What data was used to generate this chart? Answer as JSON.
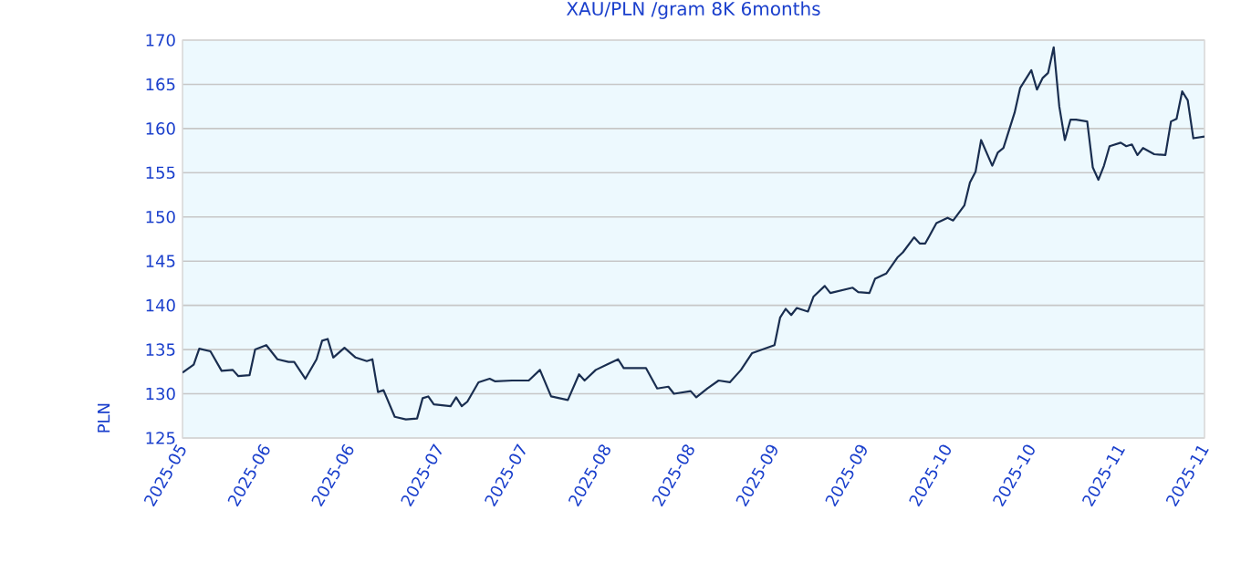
{
  "chart_data": {
    "type": "line",
    "title": "XAU/PLN /gram 8K 6months",
    "ylabel": "PLN",
    "x": [
      "2025-05-31",
      "2025-06-02",
      "2025-06-03",
      "2025-06-05",
      "2025-06-07",
      "2025-06-09",
      "2025-06-10",
      "2025-06-12",
      "2025-06-13",
      "2025-06-15",
      "2025-06-17",
      "2025-06-19",
      "2025-06-20",
      "2025-06-22",
      "2025-06-24",
      "2025-06-25",
      "2025-06-26",
      "2025-06-27",
      "2025-06-29",
      "2025-07-01",
      "2025-07-03",
      "2025-07-04",
      "2025-07-05",
      "2025-07-06",
      "2025-07-08",
      "2025-07-10",
      "2025-07-12",
      "2025-07-13",
      "2025-07-14",
      "2025-07-15",
      "2025-07-18",
      "2025-07-19",
      "2025-07-20",
      "2025-07-21",
      "2025-07-23",
      "2025-07-25",
      "2025-07-26",
      "2025-07-29",
      "2025-08-01",
      "2025-08-03",
      "2025-08-05",
      "2025-08-08",
      "2025-08-10",
      "2025-08-11",
      "2025-08-13",
      "2025-08-15",
      "2025-08-17",
      "2025-08-18",
      "2025-08-22",
      "2025-08-24",
      "2025-08-26",
      "2025-08-27",
      "2025-08-30",
      "2025-08-31",
      "2025-09-02",
      "2025-09-04",
      "2025-09-06",
      "2025-09-08",
      "2025-09-10",
      "2025-09-14",
      "2025-09-15",
      "2025-09-16",
      "2025-09-17",
      "2025-09-18",
      "2025-09-20",
      "2025-09-21",
      "2025-09-23",
      "2025-09-24",
      "2025-09-26",
      "2025-09-28",
      "2025-09-29",
      "2025-10-01",
      "2025-10-02",
      "2025-10-04",
      "2025-10-06",
      "2025-10-07",
      "2025-10-09",
      "2025-10-10",
      "2025-10-11",
      "2025-10-13",
      "2025-10-15",
      "2025-10-16",
      "2025-10-18",
      "2025-10-19",
      "2025-10-20",
      "2025-10-21",
      "2025-10-23",
      "2025-10-24",
      "2025-10-25",
      "2025-10-27",
      "2025-10-28",
      "2025-10-30",
      "2025-10-31",
      "2025-11-01",
      "2025-11-02",
      "2025-11-03",
      "2025-11-04",
      "2025-11-05",
      "2025-11-06",
      "2025-11-07",
      "2025-11-09",
      "2025-11-10",
      "2025-11-11",
      "2025-11-12",
      "2025-11-13",
      "2025-11-15",
      "2025-11-16",
      "2025-11-17",
      "2025-11-18",
      "2025-11-19",
      "2025-11-21",
      "2025-11-23",
      "2025-11-24",
      "2025-11-25",
      "2025-11-26",
      "2025-11-27",
      "2025-11-28",
      "2025-11-30"
    ],
    "series": [
      {
        "color": "#1a2e50",
        "values": [
          132.4,
          133.3,
          135.1,
          134.8,
          132.6,
          132.7,
          132.0,
          132.1,
          135.0,
          135.5,
          133.9,
          133.6,
          133.6,
          131.7,
          133.9,
          136.0,
          136.2,
          134.1,
          135.2,
          134.1,
          133.7,
          133.9,
          130.2,
          130.4,
          127.4,
          127.1,
          127.2,
          129.5,
          129.7,
          128.8,
          128.6,
          129.6,
          128.6,
          129.1,
          131.3,
          131.7,
          131.4,
          131.5,
          131.5,
          132.7,
          129.7,
          129.3,
          132.2,
          131.5,
          132.7,
          133.3,
          133.9,
          132.9,
          132.9,
          130.6,
          130.8,
          130.0,
          130.3,
          129.6,
          130.6,
          131.5,
          131.3,
          132.7,
          134.6,
          135.5,
          138.6,
          139.6,
          138.9,
          139.7,
          139.3,
          141.0,
          142.2,
          141.4,
          141.7,
          142.0,
          141.5,
          141.4,
          143.0,
          143.6,
          145.4,
          146.0,
          147.7,
          147.0,
          147.0,
          149.3,
          149.9,
          149.6,
          151.3,
          153.9,
          155.1,
          158.7,
          155.8,
          157.3,
          157.8,
          161.8,
          164.6,
          166.6,
          164.4,
          165.7,
          166.3,
          169.2,
          162.5,
          158.7,
          161.0,
          161.0,
          160.8,
          155.6,
          154.2,
          155.8,
          158.0,
          158.4,
          158.0,
          158.2,
          157.0,
          157.8,
          157.1,
          157.0,
          160.8,
          161.1,
          164.2,
          163.2,
          158.9,
          159.1
        ]
      }
    ],
    "xlim": [
      "2025-05-31",
      "2025-11-30"
    ],
    "xticks": [
      {
        "value": "2025-05-31",
        "label": "2025-05"
      },
      {
        "value": "2025-06-15",
        "label": "2025-06"
      },
      {
        "value": "2025-06-30",
        "label": "2025-06"
      },
      {
        "value": "2025-07-16",
        "label": "2025-07"
      },
      {
        "value": "2025-07-31",
        "label": "2025-07"
      },
      {
        "value": "2025-08-15",
        "label": "2025-08"
      },
      {
        "value": "2025-08-30",
        "label": "2025-08"
      },
      {
        "value": "2025-09-14",
        "label": "2025-09"
      },
      {
        "value": "2025-09-30",
        "label": "2025-09"
      },
      {
        "value": "2025-10-15",
        "label": "2025-10"
      },
      {
        "value": "2025-10-30",
        "label": "2025-10"
      },
      {
        "value": "2025-11-15",
        "label": "2025-11"
      },
      {
        "value": "2025-11-30",
        "label": "2025-11"
      }
    ],
    "ylim": [
      125,
      170
    ],
    "yticks": [
      125,
      130,
      135,
      140,
      145,
      150,
      155,
      160,
      165,
      170
    ],
    "grid": "y",
    "marker": "none",
    "line_style": "solid"
  }
}
